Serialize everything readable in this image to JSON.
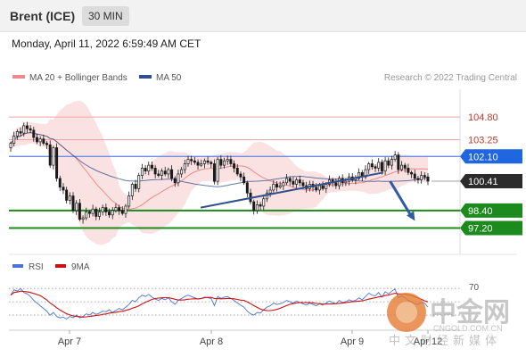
{
  "header": {
    "instrument": "Brent (ICE)",
    "interval": "30 MIN"
  },
  "timestamp": "Monday, April 11, 2022 6:59:49 AM CET",
  "legend": {
    "ma20": {
      "label": "MA 20 + Bollinger Bands",
      "color": "#f08a8a"
    },
    "ma50": {
      "label": "MA 50",
      "color": "#2f4f8f"
    }
  },
  "credit": "Research © 2022 Trading Central",
  "rsi_legend": {
    "rsi": {
      "label": "RSI",
      "color": "#4a74d8"
    },
    "ma9": {
      "label": "9MA",
      "color": "#cc1111"
    }
  },
  "watermark": {
    "main": "中金网",
    "url": "CNGOLD.COM.CN",
    "sub": "中文财经新媒体"
  },
  "chart_data": {
    "type": "candlestick",
    "x_labels": [
      "Apr 7",
      "Apr 8",
      "Apr 9",
      "Apr 12"
    ],
    "price_range": [
      95.4,
      106.7
    ],
    "levels": [
      {
        "value": 104.8,
        "label": "104.80",
        "kind": "resistance"
      },
      {
        "value": 103.25,
        "label": "103.25",
        "kind": "resistance"
      },
      {
        "value": 102.1,
        "label": "102.10",
        "kind": "pivot"
      },
      {
        "value": 100.41,
        "label": "100.41",
        "kind": "last"
      },
      {
        "value": 98.4,
        "label": "98.40",
        "kind": "target"
      },
      {
        "value": 97.2,
        "label": "97.20",
        "kind": "target"
      }
    ],
    "trendline": {
      "from": {
        "x": 0.425,
        "price": 98.6
      },
      "to": {
        "x": 0.83,
        "price": 101.0
      }
    },
    "arrow": {
      "from": {
        "x": 0.845,
        "price": 100.41
      },
      "to": {
        "x": 0.9,
        "price": 97.7
      }
    },
    "close": [
      103.0,
      103.5,
      103.8,
      103.7,
      104.2,
      104.0,
      103.9,
      103.4,
      103.1,
      103.3,
      103.0,
      102.9,
      101.5,
      102.7,
      100.6,
      100.0,
      99.8,
      99.1,
      99.4,
      98.4,
      98.9,
      97.8,
      97.9,
      98.3,
      98.2,
      98.5,
      98.0,
      98.3,
      98.6,
      98.3,
      98.1,
      98.4,
      98.6,
      98.4,
      98.2,
      98.7,
      99.4,
      100.2,
      99.9,
      100.8,
      101.3,
      101.1,
      101.5,
      101.3,
      100.9,
      100.8,
      101.1,
      100.9,
      101.2,
      100.6,
      100.3,
      100.9,
      101.2,
      101.6,
      101.9,
      101.8,
      101.7,
      101.5,
      101.6,
      101.8,
      101.7,
      101.6,
      100.4,
      101.9,
      101.5,
      101.8,
      101.9,
      101.6,
      101.3,
      100.9,
      100.7,
      100.3,
      99.6,
      99.0,
      98.4,
      98.8,
      98.7,
      99.2,
      99.6,
      99.8,
      100.2,
      100.0,
      100.1,
      100.3,
      100.6,
      100.4,
      100.2,
      100.5,
      100.3,
      100.1,
      99.9,
      100.2,
      100.0,
      99.8,
      100.1,
      99.9,
      100.2,
      100.5,
      100.3,
      100.1,
      100.6,
      100.3,
      100.4,
      100.7,
      100.5,
      100.6,
      101.0,
      100.7,
      101.2,
      101.6,
      101.4,
      101.3,
      101.7,
      101.1,
      101.8,
      101.5,
      101.9,
      102.2,
      101.2,
      101.5,
      101.3,
      101.0,
      100.9,
      100.6,
      100.5,
      100.8,
      100.7,
      100.41
    ],
    "rsi": {
      "levels": [
        70,
        50,
        30
      ],
      "tick_label": "70",
      "values": [
        60,
        68,
        66,
        70,
        64,
        62,
        58,
        52,
        48,
        44,
        40,
        36,
        30,
        34,
        28,
        26,
        27,
        24,
        28,
        26,
        30,
        26,
        28,
        32,
        30,
        34,
        31,
        33,
        36,
        35,
        38,
        34,
        37,
        40,
        38,
        42,
        46,
        52,
        50,
        56,
        60,
        58,
        61,
        57,
        54,
        52,
        55,
        53,
        56,
        50,
        46,
        52,
        55,
        58,
        60,
        58,
        56,
        54,
        55,
        57,
        56,
        55,
        44,
        58,
        55,
        57,
        58,
        55,
        52,
        48,
        45,
        42,
        36,
        32,
        30,
        34,
        33,
        38,
        42,
        44,
        48,
        46,
        47,
        49,
        52,
        50,
        48,
        51,
        49,
        47,
        45,
        48,
        46,
        44,
        47,
        45,
        48,
        51,
        49,
        47,
        52,
        49,
        50,
        53,
        51,
        52,
        56,
        53,
        58,
        63,
        60,
        59,
        64,
        57,
        65,
        62,
        66,
        69,
        56,
        59,
        56,
        52,
        50,
        47,
        46,
        49,
        48,
        42
      ]
    }
  }
}
